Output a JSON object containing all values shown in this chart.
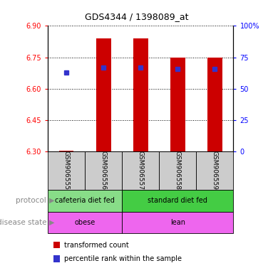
{
  "title": "GDS4344 / 1398089_at",
  "samples": [
    "GSM906555",
    "GSM906556",
    "GSM906557",
    "GSM906558",
    "GSM906559"
  ],
  "transformed_count": [
    6.305,
    6.84,
    6.84,
    6.75,
    6.75
  ],
  "percentile_rank": [
    63,
    67,
    67,
    66,
    66
  ],
  "ylim_left": [
    6.3,
    6.9
  ],
  "ylim_right": [
    0,
    100
  ],
  "yticks_left": [
    6.3,
    6.45,
    6.6,
    6.75,
    6.9
  ],
  "yticks_right": [
    0,
    25,
    50,
    75,
    100
  ],
  "bar_color": "#cc0000",
  "dot_color": "#3333cc",
  "bar_bottom": 6.3,
  "protocol_groups": [
    {
      "label": "cafeteria diet fed",
      "start": 0,
      "end": 2,
      "color": "#88dd88"
    },
    {
      "label": "standard diet fed",
      "start": 2,
      "end": 5,
      "color": "#44cc44"
    }
  ],
  "disease_groups": [
    {
      "label": "obese",
      "start": 0,
      "end": 2,
      "color": "#ee66ee"
    },
    {
      "label": "lean",
      "start": 2,
      "end": 5,
      "color": "#ee66ee"
    }
  ],
  "protocol_label": "protocol",
  "disease_label": "disease state",
  "legend_red": "transformed count",
  "legend_blue": "percentile rank within the sample",
  "sample_box_color": "#cccccc",
  "title_fontsize": 9,
  "axis_label_fontsize": 7,
  "tick_fontsize": 7,
  "sample_fontsize": 6.5,
  "row_label_fontsize": 7.5,
  "group_fontsize": 7,
  "legend_fontsize": 7
}
